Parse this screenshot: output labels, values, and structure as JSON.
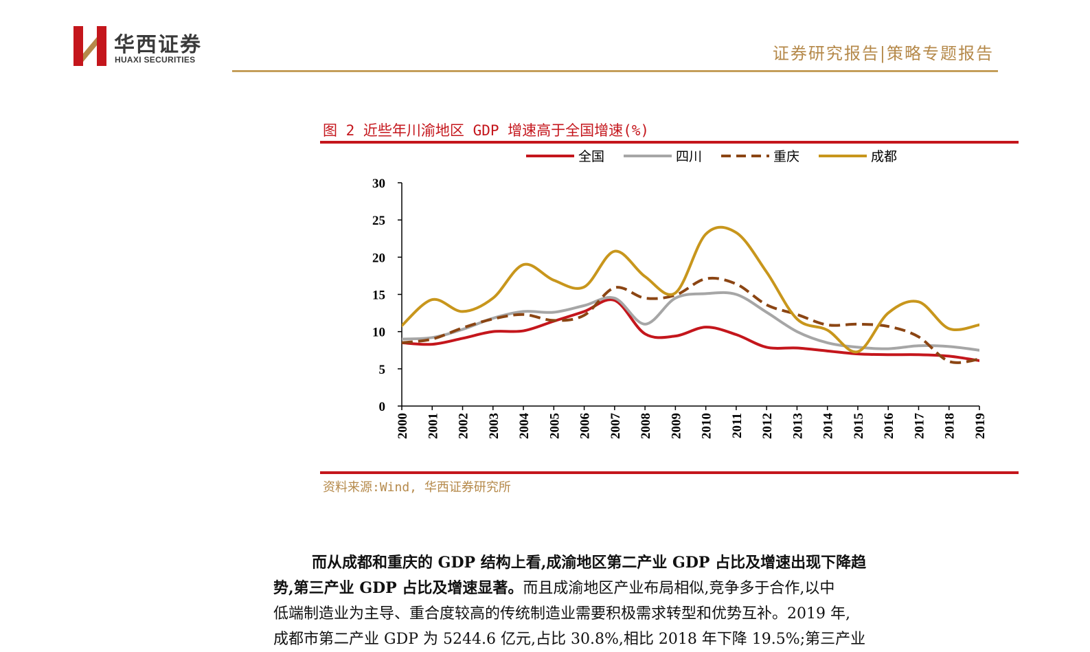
{
  "header": {
    "logo_cn": "华西证券",
    "logo_en": "HUAXI SECURITIES",
    "report_type": "证券研究报告|策略专题报告"
  },
  "colors": {
    "gold": "#b5894a",
    "red": "#c4161c",
    "grey": "#a6a6a6",
    "brown": "#8b4513",
    "amber": "#c8961c"
  },
  "figure": {
    "caption": "图 2 近些年川渝地区 GDP 增速高于全国增速(%)",
    "source": "资料来源:Wind, 华西证券研究所"
  },
  "chart_data": {
    "type": "line",
    "title": "近些年川渝地区 GDP 增速高于全国增速(%)",
    "xlabel": "",
    "ylabel": "",
    "categories": [
      "2000",
      "2001",
      "2002",
      "2003",
      "2004",
      "2005",
      "2006",
      "2007",
      "2008",
      "2009",
      "2010",
      "2011",
      "2012",
      "2013",
      "2014",
      "2015",
      "2016",
      "2017",
      "2018",
      "2019"
    ],
    "ylim": [
      0,
      30
    ],
    "yticks": [
      0,
      5,
      10,
      15,
      20,
      25,
      30
    ],
    "legend_position": "top",
    "series": [
      {
        "name": "全国",
        "color": "#c4161c",
        "dash": "solid",
        "values": [
          8.5,
          8.3,
          9.1,
          10.0,
          10.1,
          11.4,
          12.7,
          14.2,
          9.7,
          9.4,
          10.6,
          9.6,
          7.9,
          7.8,
          7.4,
          7.0,
          6.9,
          6.9,
          6.7,
          6.1
        ]
      },
      {
        "name": "四川",
        "color": "#a6a6a6",
        "dash": "solid",
        "values": [
          9.0,
          9.2,
          10.3,
          11.8,
          12.7,
          12.6,
          13.5,
          14.5,
          11.0,
          14.5,
          15.1,
          15.0,
          12.6,
          10.0,
          8.5,
          7.9,
          7.7,
          8.1,
          8.0,
          7.5
        ]
      },
      {
        "name": "重庆",
        "color": "#8b4513",
        "dash": "dashed",
        "values": [
          8.5,
          9.0,
          10.5,
          11.7,
          12.3,
          11.5,
          12.2,
          15.9,
          14.5,
          14.9,
          17.1,
          16.4,
          13.6,
          12.3,
          10.9,
          11.0,
          10.7,
          9.3,
          6.0,
          6.3
        ]
      },
      {
        "name": "成都",
        "color": "#c8961c",
        "dash": "solid",
        "values": [
          10.8,
          14.3,
          12.7,
          14.5,
          19.0,
          16.9,
          16.0,
          20.8,
          17.4,
          15.2,
          23.1,
          23.3,
          18.0,
          11.7,
          10.2,
          7.3,
          12.5,
          14.0,
          10.4,
          10.9
        ]
      }
    ]
  },
  "body": {
    "p1_l1_bold": "而从成都和重庆的 GDP 结构上看,成渝地区第二产业 GDP 占比及增速出现下降趋",
    "p1_l2_bold": "势,第三产业 GDP 占比及增速显著。",
    "p1_l2_rest": "而且成渝地区产业布局相似,竞争多于合作,以中",
    "p1_l3": "低端制造业为主导、重合度较高的传统制造业需要积极需求转型和优势互补。2019 年,",
    "p1_l4": "成都市第二产业 GDP 为 5244.6 亿元,占比 30.8%,相比 2018 年下降 19.5%;第三产业"
  }
}
